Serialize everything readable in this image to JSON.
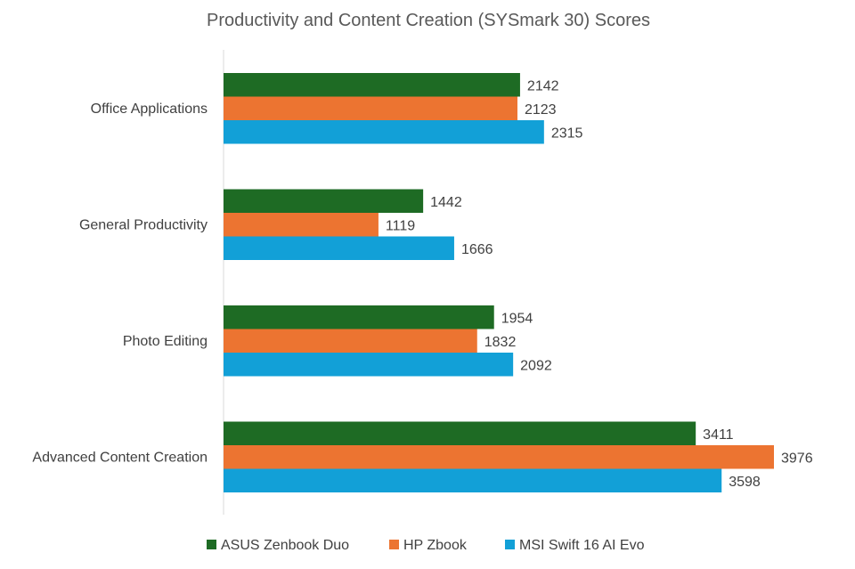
{
  "chart_data": {
    "type": "bar",
    "orientation": "horizontal",
    "title": "Productivity and Content Creation (SYSmark 30) Scores",
    "categories": [
      "Office Applications",
      "General Productivity",
      "Photo Editing",
      "Advanced Content Creation"
    ],
    "series": [
      {
        "name": "ASUS Zenbook Duo",
        "color": "#1e6b24",
        "values": [
          2142,
          1442,
          1954,
          3411
        ]
      },
      {
        "name": "HP Zbook",
        "color": "#ec7431",
        "values": [
          2123,
          1119,
          1832,
          3976
        ]
      },
      {
        "name": "MSI Swift 16 AI Evo",
        "color": "#12a0d7",
        "values": [
          2315,
          1666,
          2092,
          3598
        ]
      }
    ],
    "xlim": [
      0,
      4500
    ],
    "xlabel": "",
    "ylabel": "",
    "grid": false,
    "legend_position": "bottom"
  }
}
